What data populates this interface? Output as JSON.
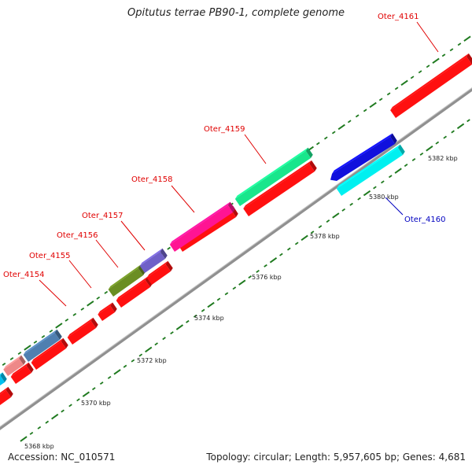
{
  "header": {
    "title": "Opitutus terrae PB90-1, complete genome"
  },
  "footer": {
    "accession": "Accession: NC_010571",
    "topology": "Topology: circular; Length: 5,957,605 bp; Genes: 4,681"
  },
  "kbp_labels": [
    "5368 kbp",
    "5370 kbp",
    "5372 kbp",
    "5374 kbp",
    "5376 kbp",
    "5378 kbp",
    "5380 kbp",
    "5382 kbp"
  ],
  "gene_labels": [
    {
      "name": "Oter_4154",
      "strand": "forward"
    },
    {
      "name": "Oter_4155",
      "strand": "forward"
    },
    {
      "name": "Oter_4156",
      "strand": "forward"
    },
    {
      "name": "Oter_4157",
      "strand": "forward"
    },
    {
      "name": "Oter_4158",
      "strand": "forward"
    },
    {
      "name": "Oter_4159",
      "strand": "forward"
    },
    {
      "name": "Oter_4160",
      "strand": "reverse"
    },
    {
      "name": "Oter_4161",
      "strand": "forward"
    }
  ],
  "colors": {
    "forward_label": "#e00000",
    "reverse_label": "#0000c0",
    "cds": "#ff1010",
    "tick": "#1f7a1f",
    "backbone": "#909090",
    "gene_4154": "#4f7fb0",
    "gene_4156": "#6b8e23",
    "gene_4157": "#7060c8",
    "gene_4158": "#ff1493",
    "gene_4159": "#19e68c",
    "gene_4160": "#1010dd",
    "gene_4160_cds": "#00f0f0",
    "gene_small_pink": "#ee8888",
    "gene_small_cyan": "#00c0f0"
  }
}
